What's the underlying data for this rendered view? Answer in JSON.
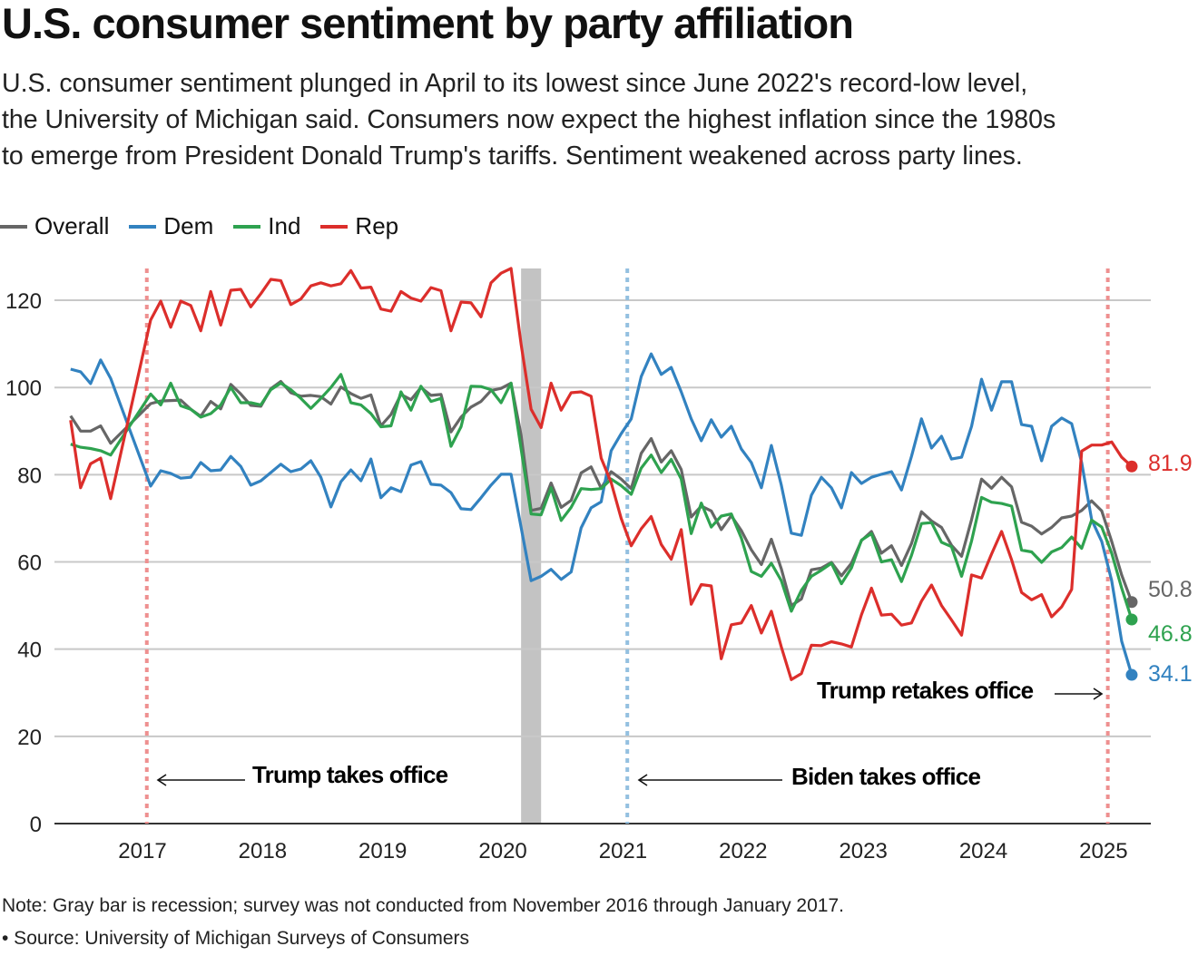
{
  "colors": {
    "Overall": "#666666",
    "Dem": "#3282c0",
    "Ind": "#2ea24f",
    "Rep": "#dc2e2b",
    "recession": "#c3c3c3",
    "grid": "#c8c8c8",
    "trump_line": "#ee9090",
    "biden_line": "#93c0e0"
  },
  "chart_data": {
    "type": "line",
    "title": "U.S. consumer sentiment by party affiliation",
    "subtitle_lines": [
      "U.S. consumer sentiment plunged in April to its lowest since June 2022's record-low level,",
      "the University of Michigan said. Consumers now expect the highest inflation since the 1980s",
      "to emerge from President Donald Trump's tariffs. Sentiment weakened across party lines."
    ],
    "xlabel": "",
    "ylabel": "",
    "ylim": [
      0,
      128
    ],
    "yticks": [
      0,
      20,
      40,
      60,
      80,
      100,
      120
    ],
    "xticks": [
      "2017",
      "2018",
      "2019",
      "2020",
      "2021",
      "2022",
      "2023",
      "2024",
      "2025"
    ],
    "grid": true,
    "legend_position": "top-left",
    "x": [
      "2016-06",
      "2016-07",
      "2016-08",
      "2016-09",
      "2016-10",
      "2017-02",
      "2017-03",
      "2017-04",
      "2017-05",
      "2017-06",
      "2017-07",
      "2017-08",
      "2017-09",
      "2017-10",
      "2017-11",
      "2017-12",
      "2018-01",
      "2018-02",
      "2018-03",
      "2018-04",
      "2018-05",
      "2018-06",
      "2018-07",
      "2018-08",
      "2018-09",
      "2018-10",
      "2018-11",
      "2018-12",
      "2019-01",
      "2019-02",
      "2019-03",
      "2019-04",
      "2019-05",
      "2019-06",
      "2019-07",
      "2019-08",
      "2019-09",
      "2019-10",
      "2019-11",
      "2019-12",
      "2020-01",
      "2020-02",
      "2020-03",
      "2020-04",
      "2020-05",
      "2020-06",
      "2020-07",
      "2020-08",
      "2020-09",
      "2020-10",
      "2020-11",
      "2020-12",
      "2021-01",
      "2021-02",
      "2021-03",
      "2021-04",
      "2021-05",
      "2021-06",
      "2021-07",
      "2021-08",
      "2021-09",
      "2021-10",
      "2021-11",
      "2021-12",
      "2022-01",
      "2022-02",
      "2022-03",
      "2022-04",
      "2022-05",
      "2022-06",
      "2022-07",
      "2022-08",
      "2022-09",
      "2022-10",
      "2022-11",
      "2022-12",
      "2023-01",
      "2023-02",
      "2023-03",
      "2023-04",
      "2023-05",
      "2023-06",
      "2023-07",
      "2023-08",
      "2023-09",
      "2023-10",
      "2023-11",
      "2023-12",
      "2024-01",
      "2024-02",
      "2024-03",
      "2024-04",
      "2024-05",
      "2024-06",
      "2024-07",
      "2024-08",
      "2024-09",
      "2024-10",
      "2024-11",
      "2024-12",
      "2025-01",
      "2025-02",
      "2025-03",
      "2025-04"
    ],
    "series": [
      {
        "name": "Overall",
        "end_label": "50.8",
        "values": [
          93.5,
          90,
          90,
          91.2,
          87.2,
          96.3,
          96.9,
          97,
          97.1,
          95,
          93.4,
          96.8,
          95.1,
          100.7,
          98.5,
          95.9,
          95.7,
          99.7,
          101.4,
          98.8,
          98,
          98.2,
          97.9,
          96.2,
          100.1,
          98.6,
          97.5,
          98.3,
          91.2,
          93.8,
          98.4,
          97.2,
          100,
          98.2,
          98.4,
          89.8,
          93.2,
          95.5,
          96.8,
          99.3,
          99.8,
          101,
          89.1,
          71.8,
          72.3,
          78.1,
          72.5,
          74.1,
          80.4,
          81.8,
          76.9,
          80.7,
          79,
          76.8,
          84.9,
          88.3,
          82.9,
          85.5,
          81.2,
          70.3,
          72.8,
          71.7,
          67.4,
          70.6,
          67.2,
          62.8,
          59.4,
          65.2,
          58.4,
          50,
          51.5,
          58.2,
          58.6,
          59.9,
          56.8,
          59.7,
          64.9,
          67,
          62,
          63.7,
          59.2,
          64.2,
          71.5,
          69.4,
          67.9,
          63.8,
          61.3,
          69.7,
          79,
          76.9,
          79.4,
          77.2,
          69.1,
          68.2,
          66.4,
          67.9,
          70.1,
          70.5,
          71.8,
          74,
          71.7,
          64.7,
          57,
          50.8
        ]
      },
      {
        "name": "Dem",
        "end_label": "34.1",
        "values": [
          104.2,
          103.6,
          100.9,
          106.3,
          102.1,
          77.4,
          80.9,
          80.3,
          79.2,
          79.4,
          82.8,
          80.9,
          81.1,
          84.2,
          81.9,
          77.6,
          78.6,
          80.5,
          82.4,
          80.7,
          81.3,
          83.2,
          79.4,
          72.6,
          78.4,
          81.1,
          78.6,
          83.6,
          74.7,
          77,
          76.1,
          82.2,
          83,
          77.8,
          77.6,
          75.9,
          72.2,
          72,
          74.7,
          77.6,
          80.1,
          80.1,
          68,
          55.7,
          56.7,
          58.3,
          56,
          57.7,
          67.8,
          72.4,
          73.8,
          85.5,
          89.4,
          92.8,
          102.5,
          107.7,
          103,
          104.6,
          99,
          92.8,
          87.8,
          92.6,
          88.6,
          91.1,
          85.9,
          82.8,
          77,
          86.7,
          77.6,
          66.6,
          66.1,
          75.3,
          79.4,
          77,
          72.4,
          80.5,
          78,
          79.4,
          80.1,
          80.7,
          76.5,
          84.2,
          92.8,
          86.1,
          88.8,
          83.6,
          84,
          91.1,
          101.9,
          94.8,
          101.3,
          101.3,
          91.5,
          91.1,
          83.2,
          91.1,
          93,
          91.7,
          82.8,
          69.7,
          64.7,
          55.7,
          41.8,
          34.1
        ]
      },
      {
        "name": "Ind",
        "end_label": "46.8",
        "values": [
          87,
          86.3,
          86,
          85.5,
          84.5,
          98.5,
          96,
          101,
          95.8,
          95,
          93.2,
          94,
          96,
          100,
          96.5,
          96.5,
          96,
          99.5,
          101,
          99.5,
          97.5,
          95.2,
          97.5,
          100,
          103,
          96.5,
          96,
          94,
          91,
          91.2,
          99,
          94.8,
          100.3,
          96.8,
          97.5,
          86.5,
          91,
          100.3,
          100.2,
          99.5,
          96.5,
          101,
          86,
          71,
          70.8,
          77,
          69.5,
          72.5,
          76.8,
          76.6,
          76.8,
          79,
          77.5,
          75.5,
          81.5,
          84.5,
          80.5,
          83.5,
          79,
          66.5,
          73.5,
          68,
          70.5,
          71,
          65.5,
          57.8,
          56.7,
          59.7,
          55.7,
          48.7,
          53.5,
          56.7,
          58.1,
          59.7,
          55,
          58.6,
          65,
          66.5,
          60,
          60.5,
          55.5,
          61.5,
          68.8,
          69,
          64.5,
          63.5,
          56.7,
          64.8,
          74.8,
          73.7,
          73.4,
          72.8,
          62.7,
          62.3,
          59.9,
          62.3,
          63.3,
          65.7,
          63.1,
          69.6,
          68,
          62,
          54,
          46.8
        ]
      },
      {
        "name": "Rep",
        "end_label": "81.9",
        "values": [
          92.5,
          77,
          82.5,
          83.8,
          74.5,
          115.5,
          119.8,
          113.8,
          119.8,
          118.8,
          113,
          122,
          114.3,
          122.3,
          122.5,
          118.5,
          121.5,
          124.8,
          124.5,
          119,
          120.3,
          123.3,
          124,
          123.3,
          123.8,
          126.8,
          122.8,
          123,
          118,
          117.5,
          122,
          120.5,
          119.8,
          122.9,
          122.2,
          113,
          119.6,
          119.4,
          116.2,
          124,
          126.2,
          127.3,
          110,
          95,
          90.8,
          101,
          94.8,
          98.8,
          99,
          98,
          83.8,
          78.2,
          70,
          63.7,
          67.6,
          70.4,
          64,
          60.6,
          67.4,
          50.3,
          54.8,
          54.5,
          37.8,
          45.6,
          46,
          50,
          43.7,
          48.7,
          40.5,
          33,
          34.4,
          40.9,
          40.8,
          41.7,
          41.2,
          40.5,
          47.9,
          54,
          47.8,
          48,
          45.5,
          46,
          51,
          54.7,
          50,
          46.7,
          43.2,
          57,
          56.3,
          61.8,
          67,
          60.5,
          53,
          51.3,
          52.5,
          47.4,
          49.7,
          53.7,
          85.4,
          86.8,
          86.8,
          87.5,
          84,
          81.9
        ]
      }
    ],
    "recession": {
      "start": "2020-03",
      "end": "2020-05"
    },
    "annotations": [
      {
        "date": "2017-01-20",
        "label": "Trump takes office",
        "color_key": "trump_line"
      },
      {
        "date": "2021-01-20",
        "label": "Biden takes office",
        "color_key": "biden_line"
      },
      {
        "date": "2025-01-20",
        "label": "Trump retakes office",
        "color_key": "trump_line"
      }
    ]
  },
  "footer": {
    "note": "Note: Gray bar is recession; survey was not conducted from November 2016 through January 2017.",
    "source": "• Source: University of Michigan Surveys of Consumers"
  }
}
